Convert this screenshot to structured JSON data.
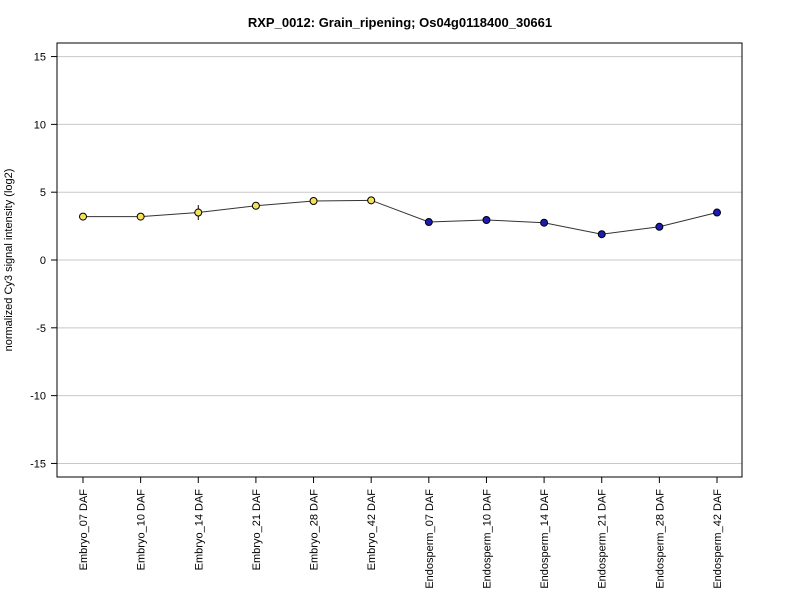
{
  "chart_data": {
    "type": "line",
    "title": "RXP_0012: Grain_ripening; Os04g0118400_30661",
    "xlabel": "",
    "ylabel": "normalized Cy3 signal intensity (log2)",
    "ylim": [
      -16,
      16
    ],
    "yticks": [
      15,
      10,
      5,
      0,
      -5,
      -10,
      -15
    ],
    "grid": true,
    "categories": [
      "Embryo_07 DAF",
      "Embryo_10 DAF",
      "Embryo_14 DAF",
      "Embryo_21 DAF",
      "Embryo_28 DAF",
      "Embryo_42 DAF",
      "Endosperm_07 DAF",
      "Endosperm_10 DAF",
      "Endosperm_14 DAF",
      "Endosperm_21 DAF",
      "Endosperm_28 DAF",
      "Endosperm_42 DAF"
    ],
    "series": [
      {
        "values": [
          3.2,
          3.2,
          3.5,
          4.0,
          4.35,
          4.4,
          2.8,
          2.95,
          2.75,
          1.9,
          2.45,
          3.5
        ],
        "error": [
          0.1,
          0.25,
          0.55,
          0.1,
          0.1,
          0.1,
          0.0,
          0.0,
          0.0,
          0.0,
          0.0,
          0.0
        ],
        "point_colors": [
          "#f5e15a",
          "#f5e15a",
          "#f5e15a",
          "#f5e15a",
          "#f5e15a",
          "#f5e15a",
          "#1c1cb4",
          "#1c1cb4",
          "#1c1cb4",
          "#1c1cb4",
          "#1c1cb4",
          "#1c1cb4"
        ]
      }
    ],
    "colors": {
      "line": "#333333",
      "grid": "#c8c8c8",
      "frame": "#000000",
      "embryo": "#f5e15a",
      "endosperm": "#1c1cb4"
    }
  }
}
